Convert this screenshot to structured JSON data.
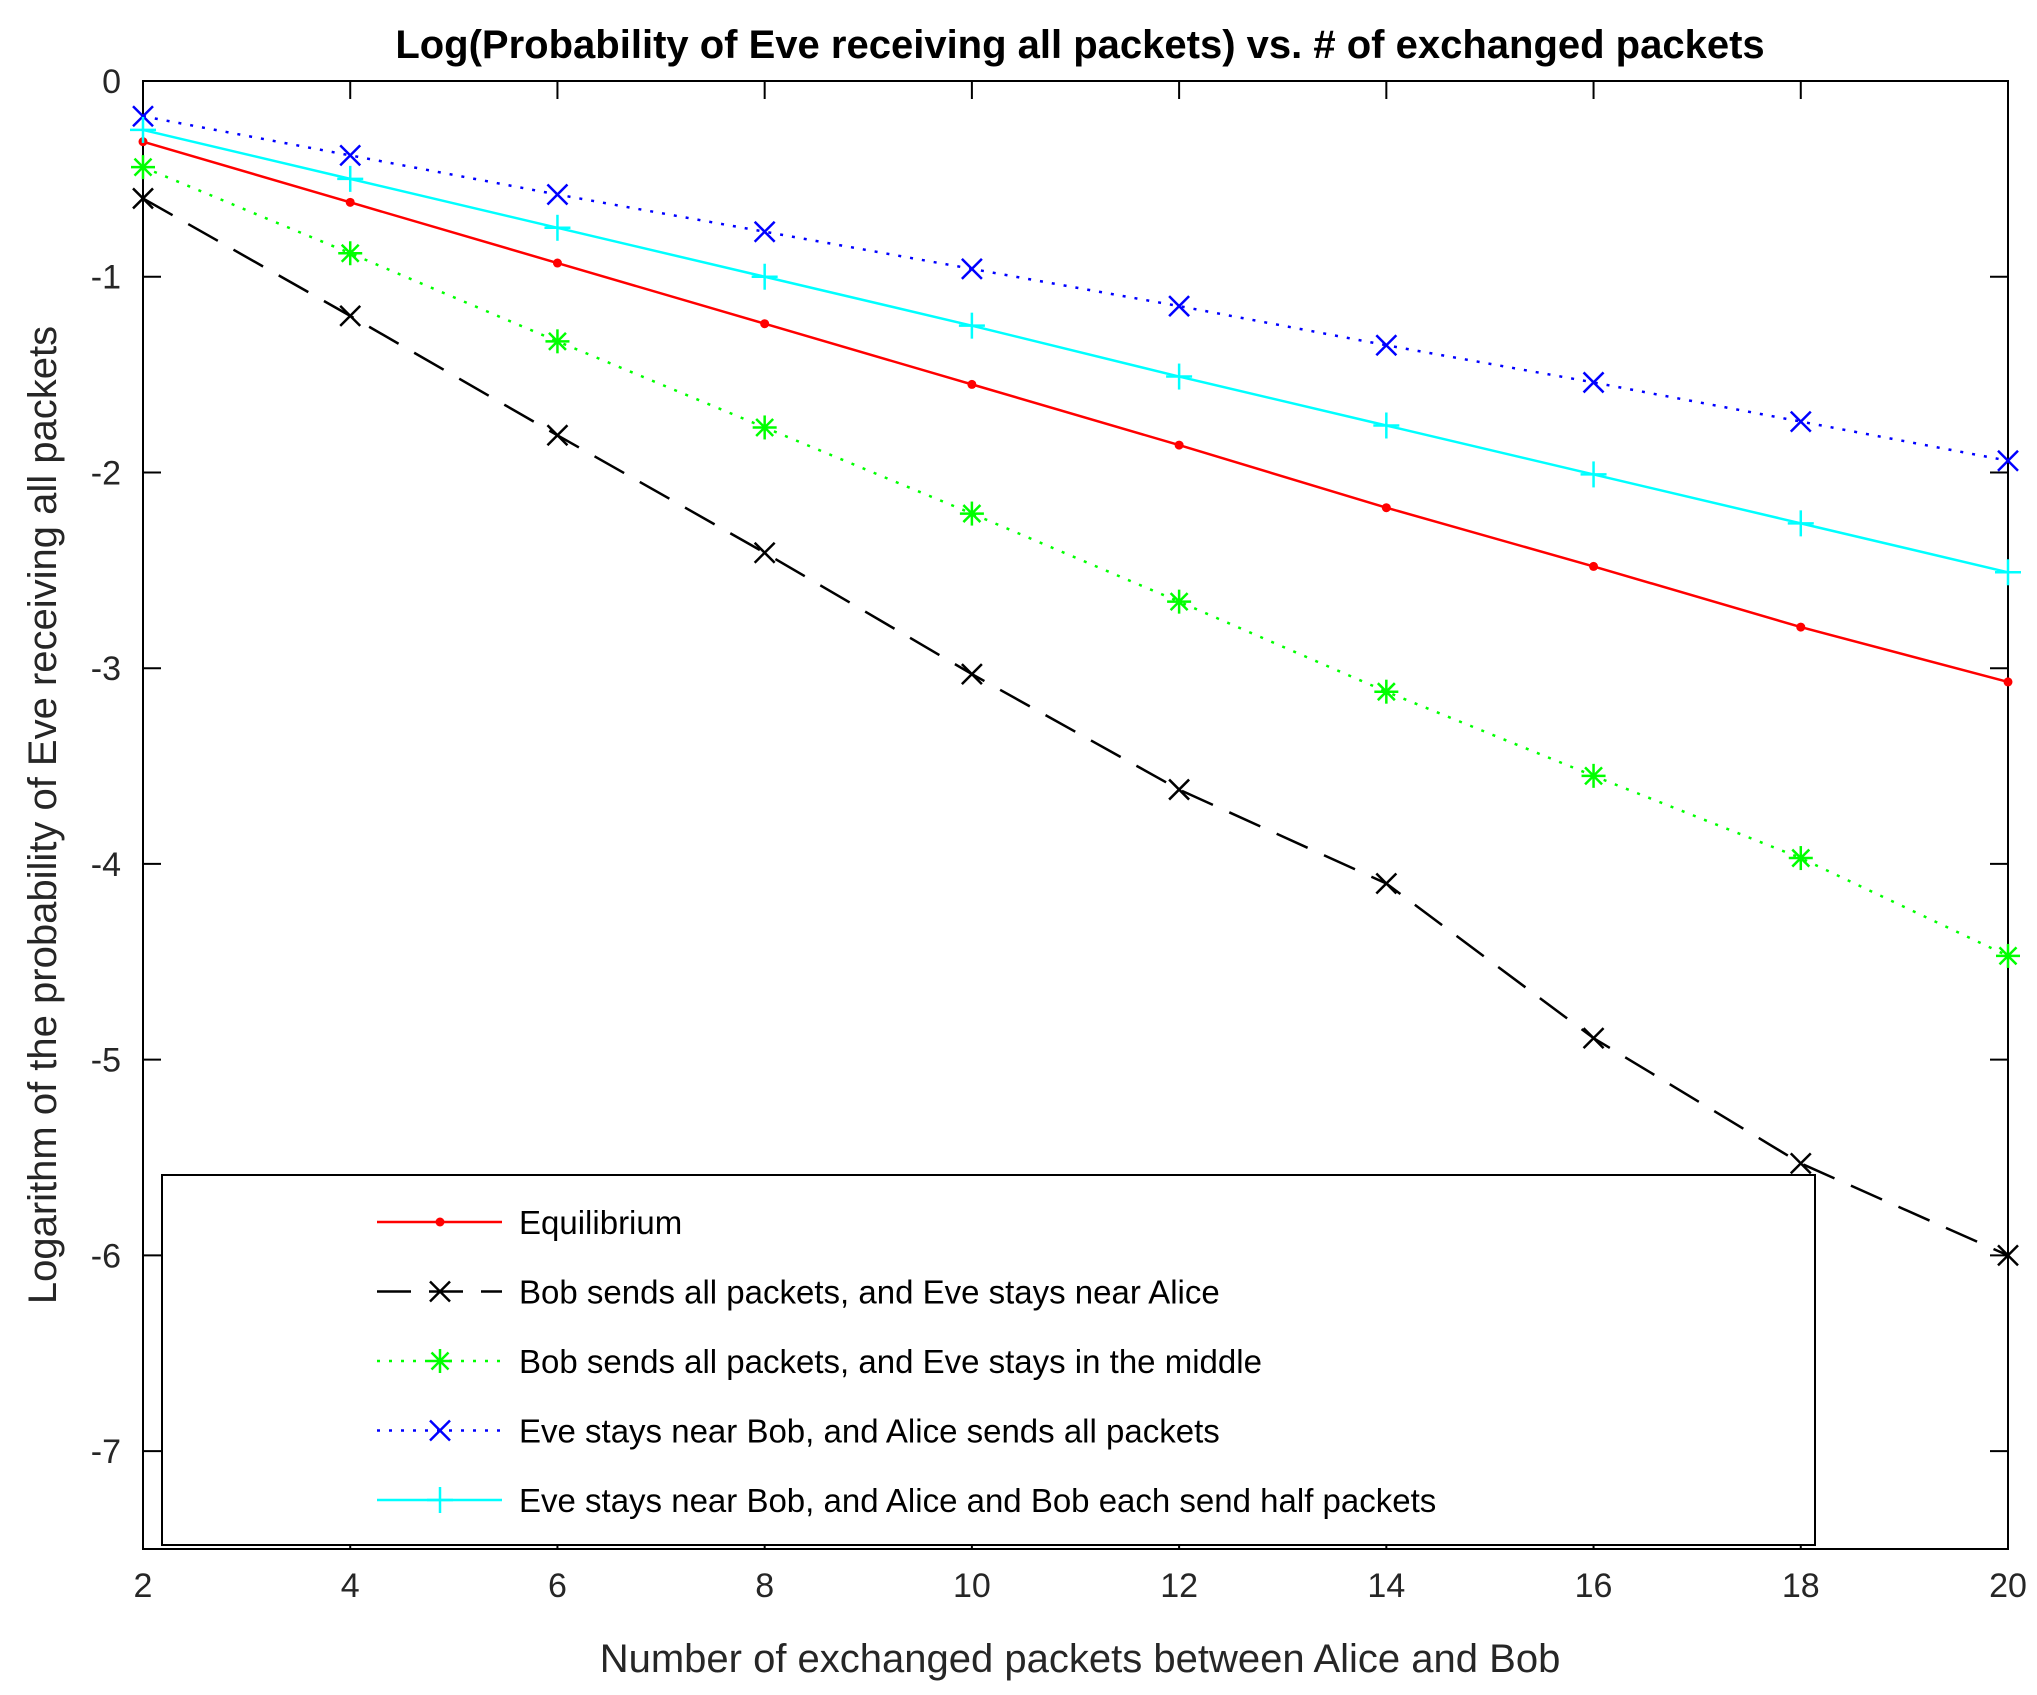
{
  "chart_data": {
    "type": "line",
    "title": "Log(Probability of Eve receiving all packets) vs. # of exchanged packets",
    "xlabel": "Number of exchanged packets between Alice and Bob",
    "ylabel": "Logarithm of the probability of Eve receiving all packets",
    "xlim": [
      2,
      20
    ],
    "ylim": [
      -7.5,
      0
    ],
    "xticks": [
      2,
      4,
      6,
      8,
      10,
      12,
      14,
      16,
      18,
      20
    ],
    "yticks": [
      0,
      -1,
      -2,
      -3,
      -4,
      -5,
      -6,
      -7
    ],
    "x": [
      2,
      4,
      6,
      8,
      10,
      12,
      14,
      16,
      18,
      20
    ],
    "legend_position": "bottom-left",
    "series": [
      {
        "name": "Equilibrium",
        "color": "#ff0000",
        "line_style": "solid",
        "marker": "dot",
        "values": [
          -0.31,
          -0.62,
          -0.93,
          -1.24,
          -1.55,
          -1.86,
          -2.18,
          -2.48,
          -2.79,
          -3.07
        ]
      },
      {
        "name": "Bob sends all packets, and Eve stays near Alice",
        "color": "#000000",
        "line_style": "dashed",
        "marker": "x",
        "values": [
          -0.6,
          -1.2,
          -1.81,
          -2.41,
          -3.03,
          -3.62,
          -4.1,
          -4.89,
          -5.53,
          -6.0
        ]
      },
      {
        "name": "Bob sends all packets, and Eve stays in the middle",
        "color": "#00ff00",
        "line_style": "dotted",
        "marker": "asterisk",
        "values": [
          -0.44,
          -0.88,
          -1.33,
          -1.77,
          -2.21,
          -2.66,
          -3.12,
          -3.55,
          -3.97,
          -4.47
        ]
      },
      {
        "name": "Eve stays near Bob, and Alice sends all packets",
        "color": "#0000ff",
        "line_style": "dotted",
        "marker": "x",
        "values": [
          -0.18,
          -0.38,
          -0.58,
          -0.77,
          -0.96,
          -1.15,
          -1.35,
          -1.54,
          -1.74,
          -1.94
        ]
      },
      {
        "name": "Eve stays near Bob, and Alice and Bob each send half packets",
        "color": "#00ffff",
        "line_style": "solid",
        "marker": "plus",
        "values": [
          -0.25,
          -0.5,
          -0.75,
          -1.0,
          -1.25,
          -1.51,
          -1.76,
          -2.01,
          -2.26,
          -2.51
        ]
      }
    ]
  }
}
